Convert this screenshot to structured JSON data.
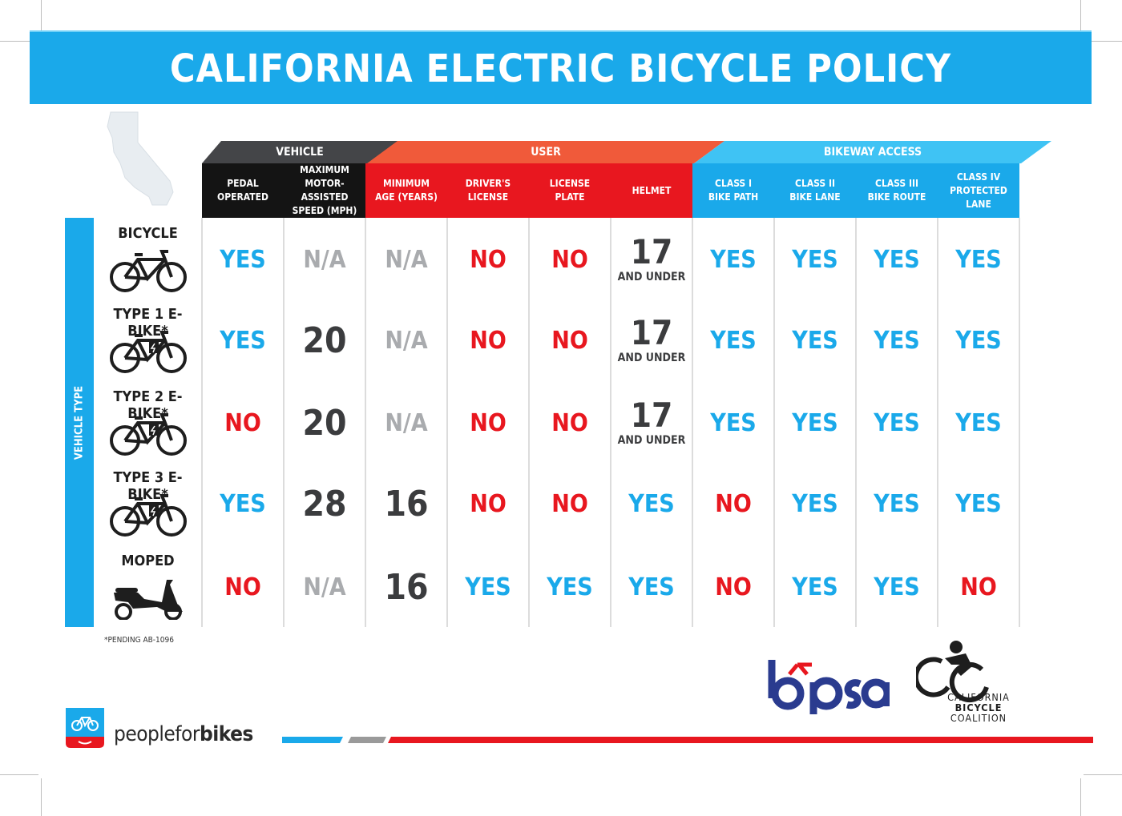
{
  "title": "CALIFORNIA ELECTRIC BICYCLE POLICY",
  "groups": {
    "vehicle": "VEHICLE",
    "user": "USER",
    "bikeway": "BIKEWAY ACCESS"
  },
  "columns": [
    "PEDAL\nOPERATED",
    "MAXIMUM\nMOTOR-ASSISTED\nSPEED (MPH)",
    "MINIMUM\nAGE (YEARS)",
    "DRIVER'S\nLICENSE",
    "LICENSE\nPLATE",
    "HELMET",
    "CLASS I\nBIKE PATH",
    "CLASS II\nBIKE LANE",
    "CLASS III\nBIKE ROUTE",
    "CLASS IV\nPROTECTED LANE"
  ],
  "vehicle_type_label": "VEHICLE TYPE",
  "rows": [
    {
      "label": "BICYCLE",
      "icon": "bicycle-icon",
      "cells": [
        "YES",
        "N/A",
        "N/A",
        "NO",
        "NO",
        "17|AND UNDER",
        "YES",
        "YES",
        "YES",
        "YES"
      ]
    },
    {
      "label": "TYPE 1 E-BIKE*",
      "icon": "ebike-icon",
      "cells": [
        "YES",
        "20",
        "N/A",
        "NO",
        "NO",
        "17|AND UNDER",
        "YES",
        "YES",
        "YES",
        "YES"
      ]
    },
    {
      "label": "TYPE 2 E-BIKE*",
      "icon": "ebike-icon",
      "cells": [
        "NO",
        "20",
        "N/A",
        "NO",
        "NO",
        "17|AND UNDER",
        "YES",
        "YES",
        "YES",
        "YES"
      ]
    },
    {
      "label": "TYPE 3 E-BIKE*",
      "icon": "ebike-icon",
      "cells": [
        "YES",
        "28",
        "16",
        "NO",
        "NO",
        "YES",
        "NO",
        "YES",
        "YES",
        "YES"
      ]
    },
    {
      "label": "MOPED",
      "icon": "moped-icon",
      "cells": [
        "NO",
        "N/A",
        "16",
        "YES",
        "YES",
        "YES",
        "NO",
        "YES",
        "YES",
        "NO"
      ]
    }
  ],
  "footnote": "*PENDING AB-1096",
  "logos": {
    "bpsa": "bpsa",
    "cbc_line1": "CALIFORNIA",
    "cbc_line2": "BICYCLE",
    "cbc_line3": "COALITION",
    "pfb_light": "peoplefor",
    "pfb_bold": "bikes"
  },
  "colors": {
    "blue": "#1aa9ea",
    "red": "#e8171f",
    "dark": "#141414",
    "gray": "#a9abae"
  }
}
